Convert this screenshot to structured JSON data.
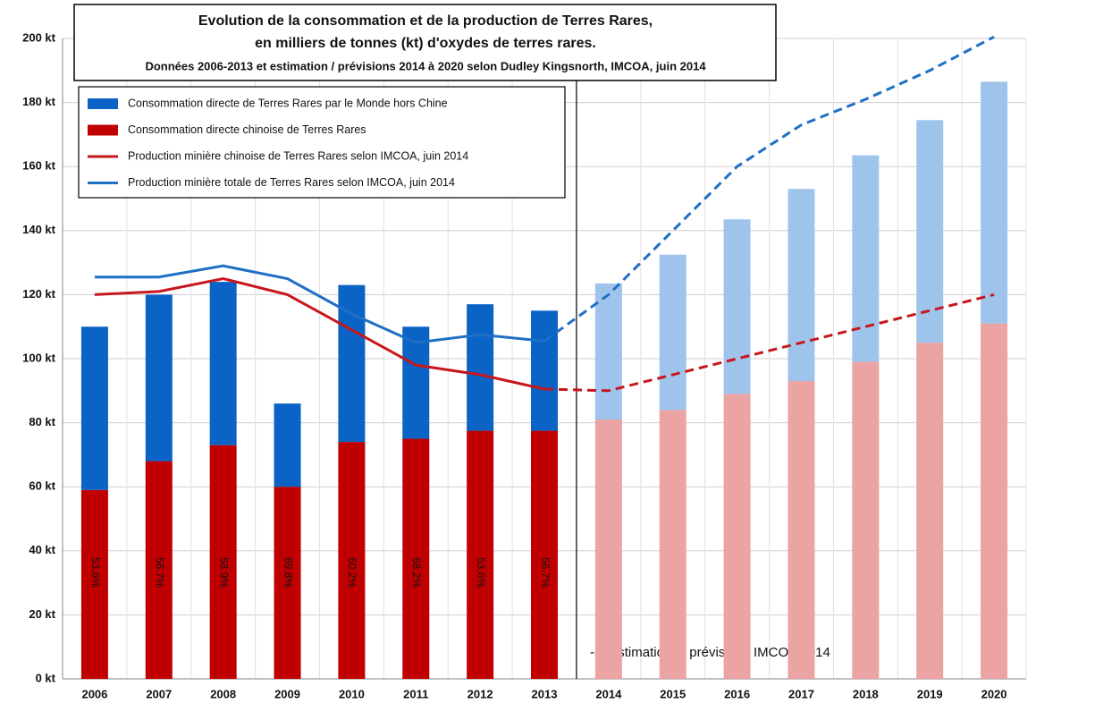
{
  "chart_data": {
    "type": "bar",
    "title": "Evolution de la consommation et de la production de Terres Rares,",
    "title_line2": "en milliers de tonnes (kt) d'oxydes de terres rares.",
    "subtitle": "Données 2006-2013 et estimation / prévisions 2014 à 2020 selon Dudley Kingsnorth, IMCOA, juin 2014",
    "annotation": "--> estimations / prévisions IMCOA 2014",
    "forecast_from": "2014",
    "categories": [
      "2006",
      "2007",
      "2008",
      "2009",
      "2010",
      "2011",
      "2012",
      "2013",
      "2014",
      "2015",
      "2016",
      "2017",
      "2018",
      "2019",
      "2020"
    ],
    "series": [
      {
        "name": "Consommation directe chinoise de Terres Rares",
        "color": "#c00000",
        "forecast_color": "#eba3a3",
        "kind": "bar",
        "values": [
          59,
          68,
          73,
          60,
          74,
          75,
          77.5,
          77.5,
          81,
          84,
          89,
          93,
          99,
          105,
          111
        ]
      },
      {
        "name": "Consommation directe de Terres Rares par le Monde hors Chine",
        "color": "#0b63c6",
        "forecast_color": "#9fc4ec",
        "kind": "bar",
        "values": [
          51,
          52,
          51,
          26,
          49,
          35,
          39.5,
          37.5,
          42.5,
          48.5,
          54.5,
          60,
          64.5,
          69.5,
          75.5
        ]
      },
      {
        "name": "Production minière chinoise de Terres Rares selon IMCOA, juin 2014",
        "color": "#c8161d",
        "kind": "line",
        "values": [
          120,
          121,
          125,
          120,
          109,
          98,
          95,
          90.5,
          90,
          95,
          100,
          105,
          110,
          115,
          120
        ]
      },
      {
        "name": "Production minière totale de Terres Rares selon IMCOA, juin 2014",
        "color": "#1f6fc5",
        "kind": "line",
        "values": [
          125.5,
          125.5,
          129,
          125,
          114,
          105,
          107.5,
          105.5,
          120,
          140,
          160,
          173,
          181,
          190,
          200.5
        ]
      }
    ],
    "bar_labels": [
      "53.6%",
      "56.7%",
      "58.9%",
      "69.8%",
      "60.2%",
      "68.2%",
      "53.6%",
      "56.7%"
    ],
    "ylim": [
      0,
      200
    ],
    "yticks": [
      {
        "value": 0,
        "label": "0 kt"
      },
      {
        "value": 20,
        "label": "20 kt"
      },
      {
        "value": 40,
        "label": "40 kt"
      },
      {
        "value": 60,
        "label": "60 kt"
      },
      {
        "value": 80,
        "label": "80 kt"
      },
      {
        "value": 100,
        "label": "100 kt"
      },
      {
        "value": 120,
        "label": "120 kt"
      },
      {
        "value": 140,
        "label": "140 kt"
      },
      {
        "value": 160,
        "label": "160 kt"
      },
      {
        "value": 180,
        "label": "180 kt"
      },
      {
        "value": 200,
        "label": "200 kt"
      }
    ],
    "grid": true
  }
}
